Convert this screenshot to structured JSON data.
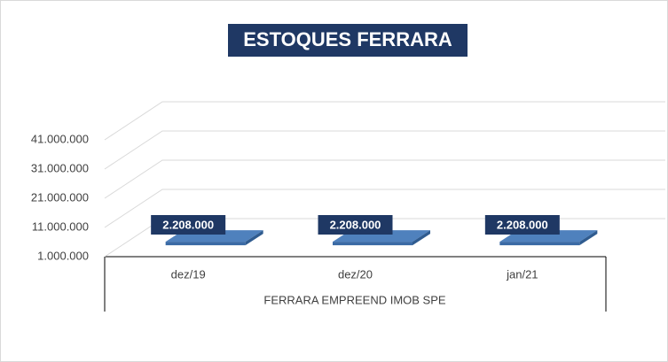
{
  "chart_data": {
    "type": "bar3d",
    "title": "ESTOQUES FERRARA",
    "categories": [
      "dez/19",
      "dez/20",
      "jan/21"
    ],
    "x_group_label": "FERRARA EMPREEND IMOB SPE",
    "values": [
      2208000,
      2208000,
      2208000
    ],
    "value_labels": [
      "2.208.000",
      "2.208.000",
      "2.208.000"
    ],
    "color": "#4f81bd",
    "ylim": [
      1000000,
      51000000
    ],
    "yticks": [
      {
        "value": 1000000,
        "label": "1.000.000"
      },
      {
        "value": 11000000,
        "label": "11.000.000"
      },
      {
        "value": 21000000,
        "label": "21.000.000"
      },
      {
        "value": 31000000,
        "label": "31.000.000"
      },
      {
        "value": 41000000,
        "label": "41.000.000"
      }
    ],
    "grid": true
  }
}
